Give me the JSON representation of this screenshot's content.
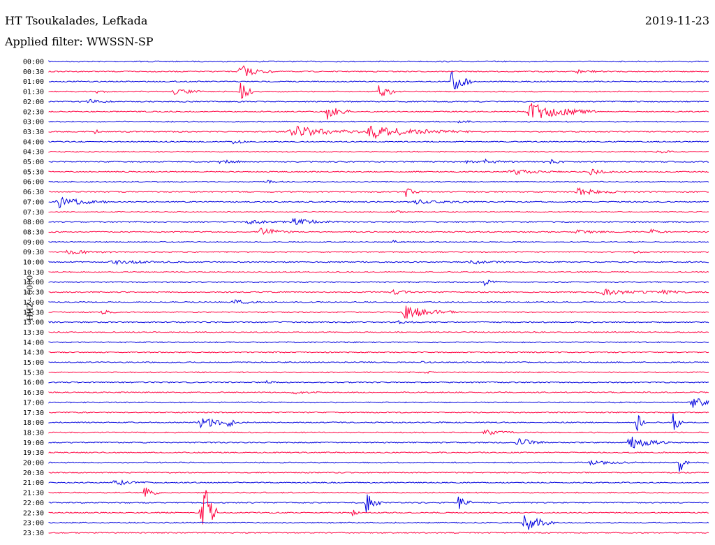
{
  "header": {
    "station": "HT Tsoukalades, Lefkada",
    "filter": "Applied filter: WWSSN-SP",
    "date": "2019-11-23"
  },
  "colors": {
    "blue": "#0000dd",
    "red": "#ff0040"
  },
  "chart_data": {
    "type": "helicorder",
    "ylabel": "HHZ - 5000",
    "rows": [
      {
        "time": "00:00",
        "color": "blue",
        "events": []
      },
      {
        "time": "00:30",
        "color": "red",
        "events": [
          {
            "x": 0.29,
            "a": 10,
            "w": 0.02
          },
          {
            "x": 0.8,
            "a": 3,
            "w": 0.02
          }
        ]
      },
      {
        "time": "01:00",
        "color": "blue",
        "events": [
          {
            "x": 0.61,
            "a": 24,
            "w": 0.012
          }
        ]
      },
      {
        "time": "01:30",
        "color": "red",
        "events": [
          {
            "x": 0.07,
            "a": 4,
            "w": 0.008
          },
          {
            "x": 0.19,
            "a": 4,
            "w": 0.02
          },
          {
            "x": 0.29,
            "a": 20,
            "w": 0.008
          },
          {
            "x": 0.5,
            "a": 18,
            "w": 0.01
          }
        ]
      },
      {
        "time": "02:00",
        "color": "blue",
        "events": [
          {
            "x": 0.06,
            "a": 3,
            "w": 0.02
          }
        ]
      },
      {
        "time": "02:30",
        "color": "red",
        "events": [
          {
            "x": 0.42,
            "a": 12,
            "w": 0.015
          },
          {
            "x": 0.73,
            "a": 14,
            "w": 0.04
          }
        ]
      },
      {
        "time": "03:00",
        "color": "blue",
        "events": [
          {
            "x": 0.62,
            "a": 3,
            "w": 0.01
          }
        ]
      },
      {
        "time": "03:30",
        "color": "red",
        "events": [
          {
            "x": 0.07,
            "a": 3,
            "w": 0.005
          },
          {
            "x": 0.37,
            "a": 8,
            "w": 0.05
          },
          {
            "x": 0.49,
            "a": 9,
            "w": 0.06
          }
        ]
      },
      {
        "time": "04:00",
        "color": "blue",
        "events": [
          {
            "x": 0.28,
            "a": 4,
            "w": 0.01
          }
        ]
      },
      {
        "time": "04:30",
        "color": "red",
        "events": [
          {
            "x": 0.92,
            "a": 3,
            "w": 0.01
          }
        ]
      },
      {
        "time": "05:00",
        "color": "blue",
        "events": [
          {
            "x": 0.26,
            "a": 4,
            "w": 0.015
          },
          {
            "x": 0.63,
            "a": 2,
            "w": 0.01
          },
          {
            "x": 0.66,
            "a": 3,
            "w": 0.02
          },
          {
            "x": 0.76,
            "a": 3,
            "w": 0.01
          }
        ]
      },
      {
        "time": "05:30",
        "color": "red",
        "events": [
          {
            "x": 0.7,
            "a": 4,
            "w": 0.03
          },
          {
            "x": 0.82,
            "a": 4,
            "w": 0.02
          }
        ]
      },
      {
        "time": "06:00",
        "color": "blue",
        "events": [
          {
            "x": 0.33,
            "a": 2,
            "w": 0.01
          }
        ]
      },
      {
        "time": "06:30",
        "color": "red",
        "events": [
          {
            "x": 0.54,
            "a": 7,
            "w": 0.01
          },
          {
            "x": 0.8,
            "a": 5,
            "w": 0.03
          }
        ]
      },
      {
        "time": "07:00",
        "color": "blue",
        "events": [
          {
            "x": 0.015,
            "a": 8,
            "w": 0.03
          },
          {
            "x": 0.55,
            "a": 3,
            "w": 0.04
          }
        ]
      },
      {
        "time": "07:30",
        "color": "red",
        "events": [
          {
            "x": 0.52,
            "a": 2,
            "w": 0.01
          }
        ]
      },
      {
        "time": "08:00",
        "color": "blue",
        "events": [
          {
            "x": 0.3,
            "a": 3,
            "w": 0.03
          },
          {
            "x": 0.37,
            "a": 5,
            "w": 0.03
          }
        ]
      },
      {
        "time": "08:30",
        "color": "red",
        "events": [
          {
            "x": 0.32,
            "a": 7,
            "w": 0.02
          },
          {
            "x": 0.8,
            "a": 3,
            "w": 0.02
          },
          {
            "x": 0.91,
            "a": 6,
            "w": 0.01
          }
        ]
      },
      {
        "time": "09:00",
        "color": "blue",
        "events": [
          {
            "x": 0.52,
            "a": 2,
            "w": 0.01
          }
        ]
      },
      {
        "time": "09:30",
        "color": "red",
        "events": [
          {
            "x": 0.03,
            "a": 3,
            "w": 0.03
          },
          {
            "x": 0.88,
            "a": 3,
            "w": 0.01
          }
        ]
      },
      {
        "time": "10:00",
        "color": "blue",
        "events": [
          {
            "x": 0.1,
            "a": 3,
            "w": 0.04
          },
          {
            "x": 0.64,
            "a": 3,
            "w": 0.02
          }
        ]
      },
      {
        "time": "10:30",
        "color": "red",
        "events": []
      },
      {
        "time": "11:00",
        "color": "blue",
        "events": [
          {
            "x": 0.66,
            "a": 6,
            "w": 0.01
          }
        ]
      },
      {
        "time": "11:30",
        "color": "red",
        "events": [
          {
            "x": 0.52,
            "a": 3,
            "w": 0.02
          },
          {
            "x": 0.84,
            "a": 4,
            "w": 0.04
          },
          {
            "x": 0.93,
            "a": 3,
            "w": 0.02
          }
        ]
      },
      {
        "time": "12:00",
        "color": "blue",
        "events": [
          {
            "x": 0.28,
            "a": 3,
            "w": 0.02
          }
        ]
      },
      {
        "time": "12:30",
        "color": "red",
        "events": [
          {
            "x": 0.08,
            "a": 3,
            "w": 0.01
          },
          {
            "x": 0.54,
            "a": 10,
            "w": 0.03
          }
        ]
      },
      {
        "time": "13:00",
        "color": "blue",
        "events": [
          {
            "x": 0.53,
            "a": 4,
            "w": 0.01
          }
        ]
      },
      {
        "time": "13:30",
        "color": "red",
        "events": []
      },
      {
        "time": "14:00",
        "color": "blue",
        "events": []
      },
      {
        "time": "14:30",
        "color": "red",
        "events": []
      },
      {
        "time": "15:00",
        "color": "blue",
        "events": [
          {
            "x": 0.56,
            "a": 2,
            "w": 0.01
          }
        ]
      },
      {
        "time": "15:30",
        "color": "red",
        "events": [
          {
            "x": 0.57,
            "a": 2,
            "w": 0.01
          }
        ]
      },
      {
        "time": "16:00",
        "color": "blue",
        "events": [
          {
            "x": 0.33,
            "a": 2,
            "w": 0.01
          }
        ]
      },
      {
        "time": "16:30",
        "color": "red",
        "events": [
          {
            "x": 0.37,
            "a": 2,
            "w": 0.02
          }
        ]
      },
      {
        "time": "17:00",
        "color": "blue",
        "events": [
          {
            "x": 0.975,
            "a": 7,
            "w": 0.025
          }
        ]
      },
      {
        "time": "17:30",
        "color": "red",
        "events": []
      },
      {
        "time": "18:00",
        "color": "blue",
        "events": [
          {
            "x": 0.23,
            "a": 10,
            "w": 0.02
          },
          {
            "x": 0.27,
            "a": 6,
            "w": 0.01
          },
          {
            "x": 0.89,
            "a": 18,
            "w": 0.006
          },
          {
            "x": 0.945,
            "a": 18,
            "w": 0.006
          }
        ]
      },
      {
        "time": "18:30",
        "color": "red",
        "events": [
          {
            "x": 0.66,
            "a": 4,
            "w": 0.02
          }
        ]
      },
      {
        "time": "19:00",
        "color": "blue",
        "events": [
          {
            "x": 0.71,
            "a": 6,
            "w": 0.02
          },
          {
            "x": 0.88,
            "a": 10,
            "w": 0.025
          }
        ]
      },
      {
        "time": "19:30",
        "color": "red",
        "events": []
      },
      {
        "time": "20:00",
        "color": "blue",
        "events": [
          {
            "x": 0.82,
            "a": 3,
            "w": 0.03
          },
          {
            "x": 0.955,
            "a": 20,
            "w": 0.006
          }
        ]
      },
      {
        "time": "20:30",
        "color": "red",
        "events": []
      },
      {
        "time": "21:00",
        "color": "blue",
        "events": [
          {
            "x": 0.1,
            "a": 4,
            "w": 0.02
          }
        ]
      },
      {
        "time": "21:30",
        "color": "red",
        "events": [
          {
            "x": 0.145,
            "a": 9,
            "w": 0.01
          }
        ]
      },
      {
        "time": "22:00",
        "color": "blue",
        "events": [
          {
            "x": 0.48,
            "a": 14,
            "w": 0.012
          },
          {
            "x": 0.62,
            "a": 14,
            "w": 0.008
          }
        ]
      },
      {
        "time": "22:30",
        "color": "red",
        "events": [
          {
            "x": 0.23,
            "a": 70,
            "w": 0.01
          },
          {
            "x": 0.46,
            "a": 5,
            "w": 0.005
          }
        ]
      },
      {
        "time": "23:00",
        "color": "blue",
        "events": [
          {
            "x": 0.72,
            "a": 14,
            "w": 0.02
          }
        ]
      },
      {
        "time": "23:30",
        "color": "red",
        "events": []
      }
    ]
  }
}
